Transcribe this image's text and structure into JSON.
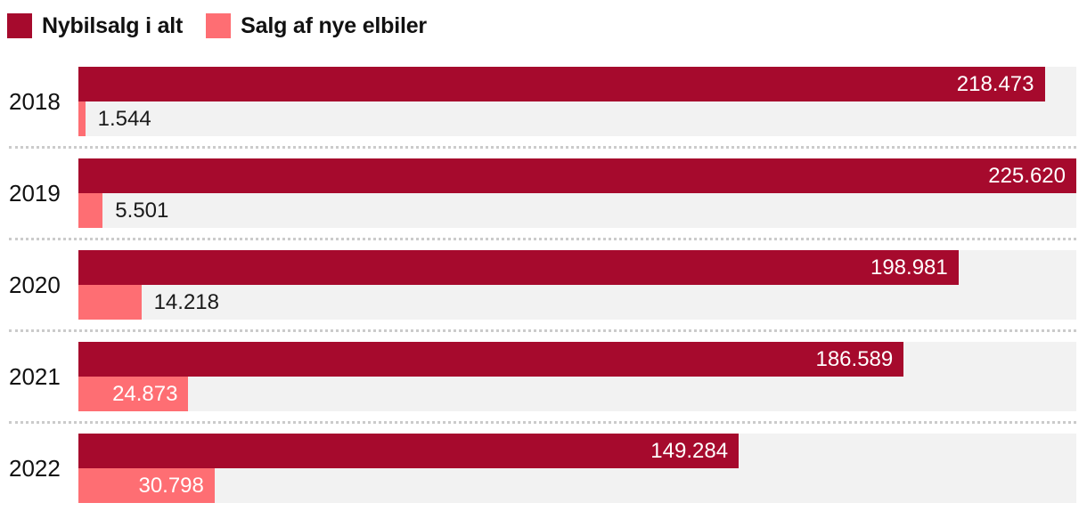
{
  "legend": {
    "items": [
      {
        "label": "Nybilsalg i alt",
        "color": "#a60a2d"
      },
      {
        "label": "Salg af nye elbiler",
        "color": "#fe6e73"
      }
    ]
  },
  "chart_data": {
    "type": "bar",
    "orientation": "horizontal",
    "title": "",
    "categories": [
      "2018",
      "2019",
      "2020",
      "2021",
      "2022"
    ],
    "series": [
      {
        "name": "Nybilsalg i alt",
        "color": "#a60a2d",
        "values": [
          218473,
          225620,
          198981,
          186589,
          149284
        ],
        "value_labels": [
          "218.473",
          "225.620",
          "198.981",
          "186.589",
          "149.284"
        ],
        "label_inside": [
          true,
          true,
          true,
          true,
          true
        ]
      },
      {
        "name": "Salg af nye elbiler",
        "color": "#fe6e73",
        "values": [
          1544,
          5501,
          14218,
          24873,
          30798
        ],
        "value_labels": [
          "1.544",
          "5.501",
          "14.218",
          "24.873",
          "30.798"
        ],
        "label_inside": [
          false,
          false,
          false,
          true,
          true
        ]
      }
    ],
    "xlim": [
      0,
      225620
    ],
    "legend_position": "top",
    "grid": false,
    "row_separator": "dotted",
    "track_color": "#f2f2f2",
    "separator_color": "#cbcbcb",
    "label_color_inside": "#ffffff",
    "label_color_outside": "#1a1a1a",
    "background": "#ffffff"
  }
}
